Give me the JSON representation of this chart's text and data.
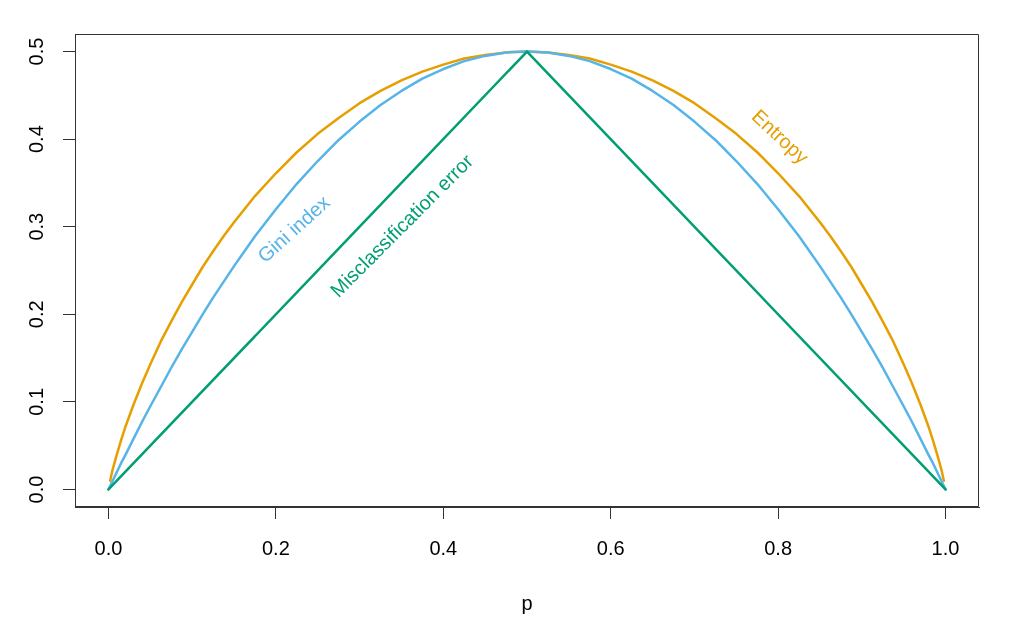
{
  "chart_data": {
    "type": "line",
    "xlabel": "p",
    "x": [
      0,
      0.002,
      0.005,
      0.01,
      0.015,
      0.02,
      0.03,
      0.04,
      0.05,
      0.0625,
      0.075,
      0.0875,
      0.1,
      0.1125,
      0.125,
      0.1375,
      0.15,
      0.175,
      0.2,
      0.225,
      0.25,
      0.275,
      0.3,
      0.325,
      0.35,
      0.375,
      0.4,
      0.425,
      0.45,
      0.475,
      0.5,
      0.525,
      0.55,
      0.575,
      0.6,
      0.625,
      0.65,
      0.675,
      0.7,
      0.725,
      0.75,
      0.775,
      0.8,
      0.825,
      0.85,
      0.8625,
      0.875,
      0.8875,
      0.9,
      0.9125,
      0.925,
      0.9375,
      0.95,
      0.96,
      0.97,
      0.98,
      0.985,
      0.99,
      0.995,
      0.998,
      1
    ],
    "xlim": [
      -0.04,
      1.04
    ],
    "xticks": [
      {
        "value": 0,
        "label": "0.0"
      },
      0.2,
      0.4,
      0.6,
      0.8,
      {
        "value": 1,
        "label": "1.0"
      }
    ],
    "ylim": [
      -0.02,
      0.52
    ],
    "yticks": [
      {
        "value": 0,
        "label": "0.0"
      },
      0.1,
      0.2,
      0.3,
      0.4,
      0.5
    ],
    "series": [
      {
        "name": "Entropy",
        "color": "#e69f00",
        "values": [
          null,
          0.01,
          0.023,
          0.04,
          0.056,
          0.071,
          0.097,
          0.121,
          0.143,
          0.169,
          0.192,
          0.214,
          0.234,
          0.254,
          0.272,
          0.289,
          0.305,
          0.335,
          0.361,
          0.385,
          0.406,
          0.424,
          0.441,
          0.455,
          0.467,
          0.477,
          0.485,
          0.492,
          0.496,
          0.499,
          0.5,
          0.499,
          0.496,
          0.492,
          0.485,
          0.477,
          0.467,
          0.455,
          0.441,
          0.424,
          0.406,
          0.385,
          0.361,
          0.335,
          0.305,
          0.289,
          0.272,
          0.254,
          0.234,
          0.214,
          0.192,
          0.169,
          0.143,
          0.121,
          0.097,
          0.071,
          0.056,
          0.04,
          0.023,
          0.01,
          null
        ]
      },
      {
        "name": "Gini index",
        "color": "#56b4e9",
        "values": [
          0,
          0.004,
          0.01,
          0.02,
          0.03,
          0.039,
          0.058,
          0.077,
          0.095,
          0.117,
          0.139,
          0.16,
          0.18,
          0.2,
          0.219,
          0.237,
          0.255,
          0.289,
          0.32,
          0.349,
          0.375,
          0.399,
          0.42,
          0.439,
          0.455,
          0.469,
          0.48,
          0.489,
          0.495,
          0.499,
          0.5,
          0.499,
          0.495,
          0.489,
          0.48,
          0.469,
          0.455,
          0.439,
          0.42,
          0.399,
          0.375,
          0.349,
          0.32,
          0.289,
          0.255,
          0.237,
          0.219,
          0.2,
          0.18,
          0.16,
          0.139,
          0.117,
          0.095,
          0.077,
          0.058,
          0.039,
          0.03,
          0.02,
          0.01,
          0.004,
          0
        ]
      },
      {
        "name": "Misclassification error",
        "color": "#009e73",
        "x": [
          0,
          0.5,
          1
        ],
        "values": [
          0,
          0.5,
          0
        ]
      }
    ]
  }
}
